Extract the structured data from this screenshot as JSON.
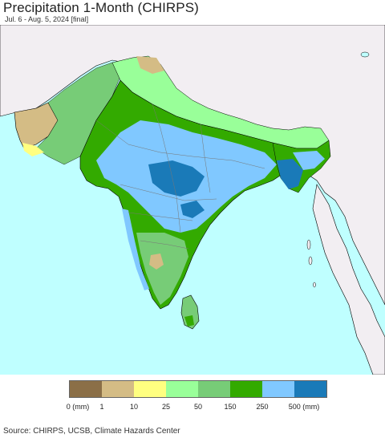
{
  "header": {
    "title": "Precipitation 1-Month (CHIRPS)",
    "subtitle": "Jul. 6 - Aug. 5, 2024 [final]"
  },
  "map": {
    "ocean_color": "#bfffff",
    "outside_land_color": "#f2eef2",
    "border_color": "#000000"
  },
  "legend": {
    "colors": [
      "#8b6f47",
      "#d4bc85",
      "#ffff80",
      "#99ff99",
      "#77cc77",
      "#33aa00",
      "#80c8ff",
      "#1a7ab8"
    ],
    "labels": [
      "0 (mm)",
      "1",
      "10",
      "25",
      "50",
      "150",
      "250",
      "500 (mm)"
    ]
  },
  "footer": {
    "source": "Source: CHIRPS, UCSB, Climate Hazards Center"
  }
}
